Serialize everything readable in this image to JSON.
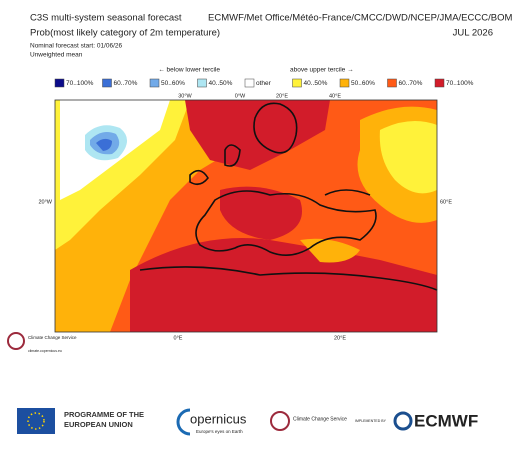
{
  "header": {
    "title": "C3S multi-system seasonal forecast",
    "centres": "ECMWF/Met Office/Météo-France/CMCC/DWD/NCEP/JMA/ECCC/BOM",
    "subtitle": "Prob(most likely category of 2m temperature)",
    "period": "JUL 2026",
    "start": "Nominal forecast start: 01/06/26",
    "method": "Unweighted mean"
  },
  "legend": {
    "below": "← below lower tercile",
    "above": "above upper tercile →",
    "items": [
      {
        "label": "70..100%",
        "color": "#0b0b8a"
      },
      {
        "label": "60..70%",
        "color": "#3b6fd6"
      },
      {
        "label": "50..60%",
        "color": "#72aae8"
      },
      {
        "label": "40..50%",
        "color": "#aee6f2"
      },
      {
        "label": "other",
        "color": "#ffffff"
      },
      {
        "label": "40..50%",
        "color": "#fff23a"
      },
      {
        "label": "50..60%",
        "color": "#ffb20a"
      },
      {
        "label": "60..70%",
        "color": "#ff5a16"
      },
      {
        "label": "70..100%",
        "color": "#d21c2a"
      }
    ]
  },
  "map": {
    "top_labels": [
      "30°W",
      "0°W",
      "20°E",
      "40°E"
    ],
    "left_label": "20°W",
    "right_label": "60°E",
    "bottom_labels": [
      "0°E",
      "20°E"
    ]
  },
  "small_logo": {
    "name": "Climate Change Service",
    "url": "climate.copernicus.eu"
  },
  "footer": {
    "eu": "PROGRAMME OF THE EUROPEAN UNION",
    "copernicus": "opernicus",
    "copernicus_tag": "Europe's eyes on Earth",
    "c3s": "Climate Change Service",
    "implemented": "IMPLEMENTED BY",
    "ecmwf": "ECMWF"
  }
}
